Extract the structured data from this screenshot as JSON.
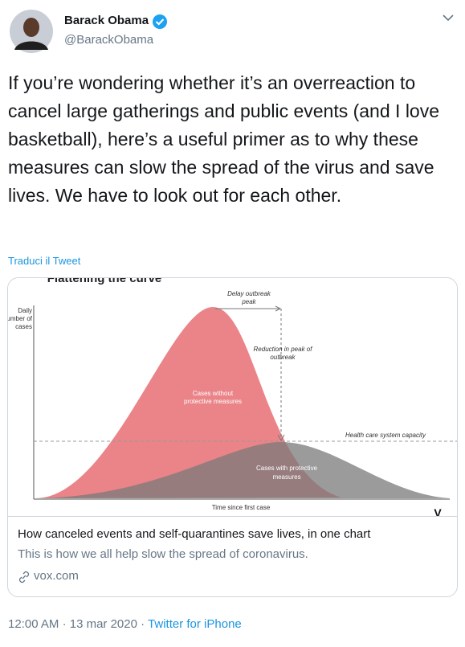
{
  "author": {
    "name": "Barack Obama",
    "handle": "@BarackObama"
  },
  "tweet": {
    "text": "If you’re wondering whether it’s an overreaction to cancel large gatherings and public events (and I love basketball), here’s a useful primer as to why these measures can slow the spread of the virus and save lives. We have to look out for each other.",
    "translate": "Traduci il Tweet"
  },
  "card": {
    "image": {
      "title": "Flattening the curve",
      "y_axis_label": [
        "Daily",
        "number of",
        "cases"
      ],
      "x_axis_label": "Time since first case",
      "delay_note": [
        "Delay outbreak",
        "peak"
      ],
      "reduction_note": [
        "Reduction in peak of",
        "outbreak"
      ],
      "capacity_note": "Health care system capacity",
      "without_label": [
        "Cases without",
        "protective measures"
      ],
      "with_label": [
        "Cases with protective",
        "measures"
      ],
      "logo": "V"
    },
    "title": "How canceled events and self-quarantines save lives, in one chart",
    "description": "This is how we all help slow the spread of coronavirus.",
    "domain": "vox.com"
  },
  "footer": {
    "time": "12:00 AM",
    "separator": "·",
    "date": "13 mar 2020",
    "source": "Twitter for iPhone"
  }
}
